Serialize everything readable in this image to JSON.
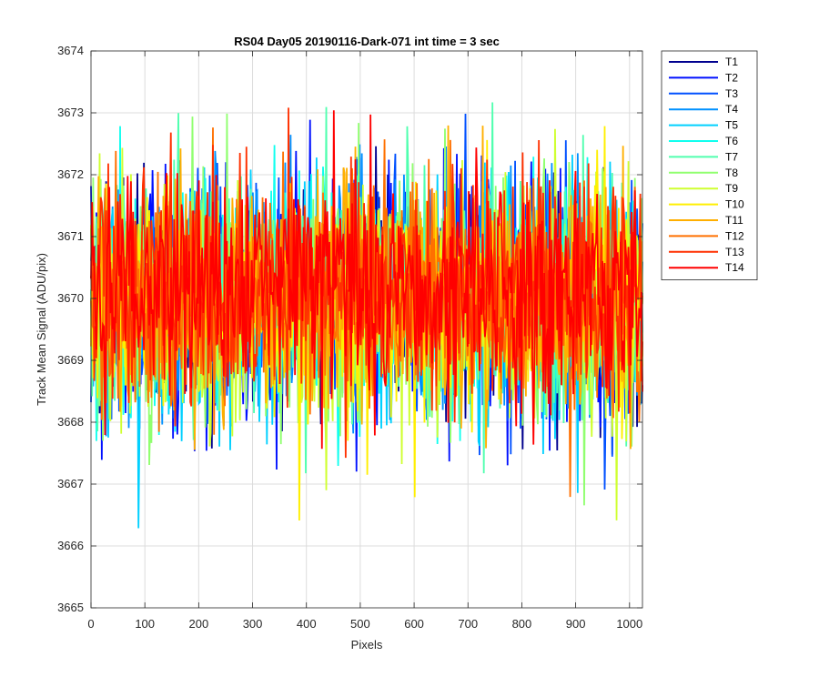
{
  "chart_data": {
    "type": "line",
    "title": "RS04 Day05 20190116-Dark-071 int time = 3 sec",
    "xlabel": "Pixels",
    "ylabel": "Track Mean Signal (ADU/pix)",
    "xlim": [
      0,
      1024
    ],
    "ylim": [
      3665,
      3674
    ],
    "xticks": [
      "0",
      "100",
      "200",
      "300",
      "400",
      "500",
      "600",
      "700",
      "800",
      "900",
      "1000"
    ],
    "yticks": [
      "3665",
      "3666",
      "3667",
      "3668",
      "3669",
      "3670",
      "3671",
      "3672",
      "3673",
      "3674"
    ],
    "grid": true,
    "legend_position": "outside-top-right",
    "noise_description": "approximately 512 points per series; mean about 3669.8 ADU/pix for early tracks, about 3670.0 for late tracks; noise standard deviation about 1 ADU/pix",
    "series": [
      {
        "name": "T1",
        "color": "#00008f",
        "mean": 3669.9,
        "std": 1.0
      },
      {
        "name": "T2",
        "color": "#0010ff",
        "mean": 3669.9,
        "std": 1.0
      },
      {
        "name": "T3",
        "color": "#0050ff",
        "mean": 3669.9,
        "std": 1.0
      },
      {
        "name": "T4",
        "color": "#0090ff",
        "mean": 3669.9,
        "std": 1.0
      },
      {
        "name": "T5",
        "color": "#00d0ff",
        "mean": 3669.8,
        "std": 1.0
      },
      {
        "name": "T6",
        "color": "#10ffef",
        "mean": 3669.8,
        "std": 1.0
      },
      {
        "name": "T7",
        "color": "#50ffaf",
        "mean": 3669.8,
        "std": 1.0
      },
      {
        "name": "T8",
        "color": "#90ff6f",
        "mean": 3669.8,
        "std": 1.0
      },
      {
        "name": "T9",
        "color": "#cfff30",
        "mean": 3669.8,
        "std": 1.0
      },
      {
        "name": "T10",
        "color": "#ffef00",
        "mean": 3669.9,
        "std": 1.0
      },
      {
        "name": "T11",
        "color": "#ffaf00",
        "mean": 3669.9,
        "std": 1.0
      },
      {
        "name": "T12",
        "color": "#ff7000",
        "mean": 3669.9,
        "std": 1.0
      },
      {
        "name": "T13",
        "color": "#ff3000",
        "mean": 3670.0,
        "std": 1.0
      },
      {
        "name": "T14",
        "color": "#ff0000",
        "mean": 3670.0,
        "std": 1.0
      }
    ]
  }
}
